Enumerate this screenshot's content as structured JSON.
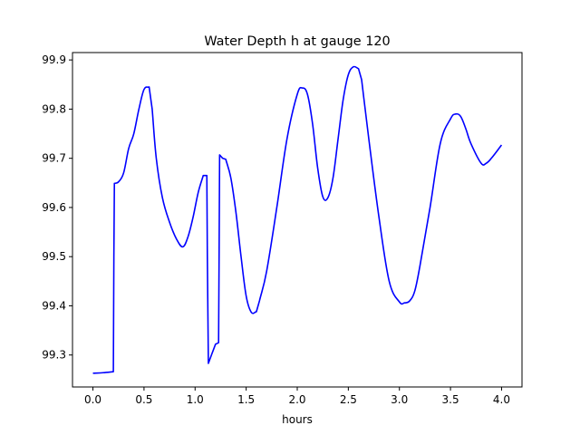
{
  "chart_data": {
    "type": "line",
    "title": "Water Depth h at gauge 120",
    "xlabel": "hours",
    "ylabel": "",
    "xlim": [
      -0.2,
      4.2
    ],
    "ylim": [
      99.235,
      99.915
    ],
    "xticks": [
      0.0,
      0.5,
      1.0,
      1.5,
      2.0,
      2.5,
      3.0,
      3.5,
      4.0
    ],
    "xtick_labels": [
      "0.0",
      "0.5",
      "1.0",
      "1.5",
      "2.0",
      "2.5",
      "3.0",
      "3.5",
      "4.0"
    ],
    "yticks": [
      99.3,
      99.4,
      99.5,
      99.6,
      99.7,
      99.8,
      99.9
    ],
    "ytick_labels": [
      "99.3",
      "99.4",
      "99.5",
      "99.6",
      "99.7",
      "99.8",
      "99.9"
    ],
    "grid": false,
    "series": [
      {
        "color": "#0000ff",
        "x": [
          0.0,
          0.1,
          0.2,
          0.205,
          0.21,
          0.25,
          0.3,
          0.35,
          0.4,
          0.45,
          0.5,
          0.55,
          0.58,
          0.62,
          0.68,
          0.75,
          0.82,
          0.88,
          0.93,
          0.98,
          1.03,
          1.08,
          1.115,
          1.12,
          1.13,
          1.16,
          1.2,
          1.23,
          1.235,
          1.24,
          1.27,
          1.3,
          1.35,
          1.4,
          1.45,
          1.5,
          1.55,
          1.6,
          1.63,
          1.7,
          1.8,
          1.9,
          2.0,
          2.05,
          2.1,
          2.15,
          2.2,
          2.25,
          2.3,
          2.35,
          2.4,
          2.45,
          2.5,
          2.55,
          2.6,
          2.63,
          2.7,
          2.8,
          2.9,
          3.0,
          3.05,
          3.1,
          3.15,
          3.2,
          3.3,
          3.4,
          3.5,
          3.55,
          3.6,
          3.65,
          3.7,
          3.8,
          3.85,
          3.9,
          4.0
        ],
        "y": [
          99.263,
          99.264,
          99.266,
          99.5,
          99.649,
          99.652,
          99.67,
          99.72,
          99.75,
          99.8,
          99.84,
          99.845,
          99.8,
          99.7,
          99.62,
          99.57,
          99.535,
          99.52,
          99.54,
          99.58,
          99.63,
          99.665,
          99.665,
          99.5,
          99.283,
          99.3,
          99.322,
          99.325,
          99.5,
          99.707,
          99.7,
          99.698,
          99.66,
          99.59,
          99.5,
          99.42,
          99.387,
          99.388,
          99.41,
          99.47,
          99.6,
          99.74,
          99.83,
          99.843,
          99.83,
          99.77,
          99.68,
          99.622,
          99.62,
          99.66,
          99.74,
          99.82,
          99.87,
          99.886,
          99.882,
          99.86,
          99.74,
          99.58,
          99.45,
          99.408,
          99.406,
          99.41,
          99.43,
          99.48,
          99.6,
          99.73,
          99.78,
          99.79,
          99.785,
          99.76,
          99.73,
          99.69,
          99.69,
          99.7,
          99.727
        ]
      }
    ]
  }
}
